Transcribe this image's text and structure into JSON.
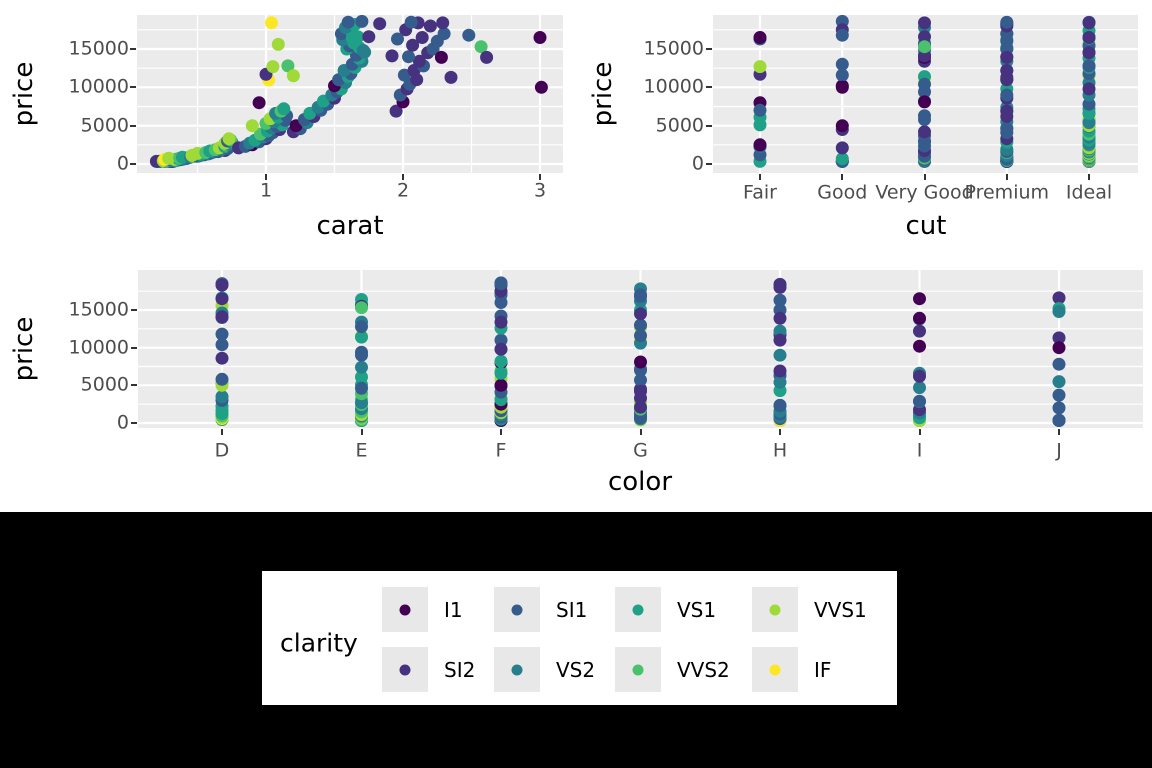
{
  "figure": {
    "background": "#000000",
    "canvas_background": "#ffffff",
    "panel_background": "#ebebeb",
    "grid_color": "#ffffff",
    "tick_color": "#333333",
    "tick_label_color": "#4d4d4d",
    "axis_title_color": "#000000"
  },
  "legend": {
    "title": "clarity",
    "background": "#ffffff",
    "key_background": "#e8e8e8",
    "rows": 2,
    "columns": 4,
    "order_note": "filled row-major: I1 SI1 VS1 VVS1 / SI2 VS2 VVS2 IF"
  },
  "clarity_levels": [
    "I1",
    "SI2",
    "SI1",
    "VS2",
    "VS1",
    "VVS2",
    "VVS1",
    "IF"
  ],
  "clarity_colors": [
    "#440154",
    "#46327E",
    "#365C8D",
    "#277F8E",
    "#1FA187",
    "#4AC16D",
    "#A0DA39",
    "#FDE725"
  ],
  "cut_levels": [
    "Fair",
    "Good",
    "Very Good",
    "Premium",
    "Ideal"
  ],
  "color_levels": [
    "D",
    "E",
    "F",
    "G",
    "H",
    "I",
    "J"
  ],
  "chart_data": [
    {
      "type": "scatter",
      "xlabel": "carat",
      "ylabel": "price",
      "x_field": "carat",
      "color_by": "clarity",
      "x_ticks": [
        1,
        2,
        3
      ],
      "x_minor": [
        0.5,
        1.5,
        2.5
      ],
      "y_ticks": [
        0,
        5000,
        10000,
        15000
      ],
      "y_minor": [
        2500,
        7500,
        12500,
        17500
      ],
      "xlim": [
        0.06,
        3.17
      ],
      "ylim": [
        -1175,
        19435
      ],
      "grid": true,
      "legend_position": "shared-bottom"
    },
    {
      "type": "strip",
      "xlabel": "cut",
      "ylabel": "price",
      "x_field": "cut",
      "color_by": "clarity",
      "categories": [
        "Fair",
        "Good",
        "Very Good",
        "Premium",
        "Ideal"
      ],
      "y_ticks": [
        0,
        5000,
        10000,
        15000
      ],
      "y_minor": [
        2500,
        7500,
        12500,
        17500
      ],
      "ylim": [
        -1175,
        19435
      ],
      "grid": true,
      "legend_position": "shared-bottom"
    },
    {
      "type": "strip",
      "xlabel": "color",
      "ylabel": "price",
      "x_field": "color",
      "color_by": "clarity",
      "categories": [
        "D",
        "E",
        "F",
        "G",
        "H",
        "I",
        "J"
      ],
      "y_ticks": [
        0,
        5000,
        10000,
        15000
      ],
      "y_minor": [
        2500,
        7500,
        12500,
        17500
      ],
      "ylim": [
        -1300,
        20300
      ],
      "grid": true,
      "legend_position": "shared-bottom"
    }
  ],
  "diamonds": {
    "columns": [
      "carat",
      "price",
      "clarity_index",
      "cut_index",
      "color_index"
    ],
    "points": [
      [
        0.23,
        326,
        2,
        4,
        1
      ],
      [
        0.21,
        326,
        2,
        3,
        1
      ],
      [
        0.23,
        327,
        4,
        1,
        1
      ],
      [
        0.29,
        334,
        3,
        3,
        5
      ],
      [
        0.31,
        335,
        1,
        1,
        6
      ],
      [
        0.24,
        336,
        5,
        2,
        5
      ],
      [
        0.24,
        336,
        6,
        2,
        5
      ],
      [
        0.26,
        337,
        2,
        2,
        4
      ],
      [
        0.22,
        337,
        4,
        0,
        2
      ],
      [
        0.23,
        338,
        7,
        4,
        4
      ],
      [
        0.3,
        339,
        2,
        1,
        6
      ],
      [
        0.23,
        340,
        4,
        4,
        2
      ],
      [
        0.22,
        342,
        2,
        3,
        2
      ],
      [
        0.31,
        344,
        1,
        4,
        6
      ],
      [
        0.2,
        345,
        1,
        3,
        2
      ],
      [
        0.32,
        345,
        0,
        3,
        2
      ],
      [
        0.3,
        348,
        2,
        4,
        6
      ],
      [
        0.33,
        366,
        2,
        3,
        6
      ],
      [
        0.25,
        400,
        6,
        4,
        3
      ],
      [
        0.35,
        450,
        4,
        4,
        0
      ],
      [
        0.28,
        470,
        5,
        3,
        1
      ],
      [
        0.32,
        505,
        4,
        2,
        2
      ],
      [
        0.34,
        538,
        5,
        4,
        3
      ],
      [
        0.3,
        552,
        3,
        3,
        3
      ],
      [
        0.38,
        580,
        2,
        2,
        4
      ],
      [
        0.26,
        600,
        7,
        4,
        0
      ],
      [
        0.33,
        625,
        6,
        4,
        1
      ],
      [
        0.4,
        655,
        3,
        4,
        2
      ],
      [
        0.36,
        690,
        4,
        1,
        5
      ],
      [
        0.42,
        720,
        2,
        3,
        3
      ],
      [
        0.29,
        740,
        6,
        4,
        0
      ],
      [
        0.37,
        760,
        5,
        2,
        1
      ],
      [
        0.41,
        800,
        3,
        4,
        4
      ],
      [
        0.44,
        850,
        2,
        3,
        2
      ],
      [
        0.39,
        880,
        4,
        4,
        5
      ],
      [
        0.45,
        930,
        3,
        4,
        1
      ],
      [
        0.47,
        960,
        5,
        4,
        0
      ],
      [
        0.5,
        1010,
        2,
        2,
        3
      ],
      [
        0.52,
        1080,
        3,
        3,
        2
      ],
      [
        0.46,
        1120,
        6,
        4,
        1
      ],
      [
        0.55,
        1200,
        2,
        0,
        4
      ],
      [
        0.53,
        1260,
        4,
        4,
        0
      ],
      [
        0.58,
        1320,
        3,
        4,
        5
      ],
      [
        0.5,
        1380,
        6,
        4,
        2
      ],
      [
        0.6,
        1450,
        2,
        2,
        3
      ],
      [
        0.56,
        1500,
        5,
        3,
        1
      ],
      [
        0.62,
        1560,
        3,
        4,
        4
      ],
      [
        0.65,
        1620,
        2,
        3,
        2
      ],
      [
        0.59,
        1700,
        4,
        4,
        0
      ],
      [
        0.7,
        1760,
        1,
        2,
        5
      ],
      [
        0.63,
        1850,
        5,
        4,
        3
      ],
      [
        0.68,
        1900,
        3,
        3,
        1
      ],
      [
        0.72,
        2000,
        2,
        4,
        6
      ],
      [
        0.66,
        2100,
        6,
        4,
        2
      ],
      [
        0.7,
        2250,
        4,
        0,
        0
      ],
      [
        0.74,
        2350,
        2,
        2,
        4
      ],
      [
        0.71,
        2450,
        5,
        4,
        1
      ],
      [
        0.73,
        2550,
        3,
        4,
        2
      ],
      [
        0.7,
        2700,
        6,
        4,
        3
      ],
      [
        0.75,
        2850,
        4,
        3,
        5
      ],
      [
        0.72,
        3000,
        2,
        2,
        0
      ],
      [
        0.74,
        3150,
        5,
        4,
        1
      ],
      [
        0.73,
        3300,
        6,
        4,
        2
      ],
      [
        0.8,
        2100,
        1,
        1,
        3
      ],
      [
        0.85,
        2300,
        2,
        0,
        4
      ],
      [
        0.9,
        2500,
        0,
        0,
        2
      ],
      [
        0.88,
        2700,
        3,
        4,
        1
      ],
      [
        0.95,
        2900,
        2,
        2,
        5
      ],
      [
        0.92,
        3100,
        4,
        4,
        2
      ],
      [
        1.0,
        3300,
        1,
        3,
        3
      ],
      [
        0.98,
        3500,
        3,
        4,
        0
      ],
      [
        1.02,
        3700,
        2,
        2,
        6
      ],
      [
        0.96,
        3900,
        5,
        4,
        1
      ],
      [
        1.05,
        4100,
        2,
        3,
        2
      ],
      [
        1.01,
        4300,
        4,
        4,
        4
      ],
      [
        1.1,
        4500,
        1,
        1,
        3
      ],
      [
        1.04,
        4700,
        3,
        3,
        5
      ],
      [
        1.08,
        4900,
        2,
        4,
        2
      ],
      [
        1.12,
        5100,
        4,
        0,
        1
      ],
      [
        1.0,
        5300,
        5,
        4,
        0
      ],
      [
        1.06,
        5500,
        3,
        3,
        6
      ],
      [
        1.14,
        5700,
        2,
        4,
        3
      ],
      [
        1.03,
        5900,
        6,
        4,
        2
      ],
      [
        1.09,
        6100,
        4,
        0,
        1
      ],
      [
        1.15,
        6300,
        2,
        2,
        4
      ],
      [
        1.07,
        6600,
        3,
        4,
        5
      ],
      [
        1.11,
        6900,
        5,
        3,
        2
      ],
      [
        1.13,
        7200,
        4,
        4,
        3
      ],
      [
        0.9,
        5000,
        6,
        4,
        0
      ],
      [
        1.04,
        18430,
        7,
        3,
        2
      ],
      [
        1.02,
        10954,
        7,
        2,
        3
      ],
      [
        1.09,
        15600,
        6,
        4,
        0
      ],
      [
        1.16,
        12800,
        5,
        4,
        3
      ],
      [
        1.2,
        11500,
        6,
        4,
        1
      ],
      [
        1.0,
        11700,
        1,
        0,
        4
      ],
      [
        1.05,
        12700,
        6,
        0,
        3
      ],
      [
        0.95,
        8000,
        0,
        0,
        2
      ],
      [
        1.2,
        4200,
        1,
        2,
        3
      ],
      [
        1.25,
        4600,
        2,
        3,
        1
      ],
      [
        1.22,
        5000,
        0,
        1,
        2
      ],
      [
        1.3,
        5400,
        3,
        4,
        4
      ],
      [
        1.28,
        5800,
        2,
        2,
        0
      ],
      [
        1.35,
        6200,
        1,
        3,
        5
      ],
      [
        1.32,
        6600,
        4,
        4,
        2
      ],
      [
        1.4,
        7000,
        2,
        0,
        3
      ],
      [
        1.38,
        7400,
        3,
        3,
        1
      ],
      [
        1.45,
        7800,
        2,
        4,
        6
      ],
      [
        1.42,
        8200,
        4,
        2,
        2
      ],
      [
        1.5,
        8600,
        1,
        3,
        0
      ],
      [
        1.48,
        9000,
        3,
        4,
        4
      ],
      [
        1.52,
        9400,
        2,
        2,
        1
      ],
      [
        1.55,
        9800,
        4,
        3,
        2
      ],
      [
        1.5,
        10200,
        0,
        1,
        5
      ],
      [
        1.58,
        10600,
        3,
        4,
        3
      ],
      [
        1.53,
        11000,
        2,
        3,
        2
      ],
      [
        1.6,
        11400,
        4,
        2,
        1
      ],
      [
        1.62,
        11800,
        2,
        4,
        0
      ],
      [
        1.57,
        12200,
        3,
        3,
        4
      ],
      [
        1.65,
        12600,
        4,
        4,
        2
      ],
      [
        1.63,
        13000,
        2,
        1,
        3
      ],
      [
        1.7,
        13400,
        3,
        3,
        1
      ],
      [
        1.68,
        13800,
        4,
        4,
        5
      ],
      [
        1.66,
        14200,
        2,
        2,
        2
      ],
      [
        1.72,
        14600,
        3,
        4,
        0
      ],
      [
        1.59,
        15000,
        4,
        3,
        3
      ],
      [
        1.61,
        15400,
        2,
        4,
        1
      ],
      [
        1.64,
        15800,
        4,
        2,
        1
      ],
      [
        1.56,
        16200,
        3,
        3,
        3
      ],
      [
        1.67,
        16600,
        4,
        4,
        0
      ],
      [
        1.55,
        17000,
        2,
        3,
        2
      ],
      [
        1.62,
        17400,
        4,
        4,
        2
      ],
      [
        1.58,
        17800,
        3,
        2,
        3
      ],
      [
        1.65,
        18200,
        4,
        3,
        2
      ],
      [
        1.6,
        18500,
        2,
        4,
        0
      ],
      [
        1.63,
        16400,
        4,
        4,
        1
      ],
      [
        1.7,
        18600,
        2,
        1,
        2
      ],
      [
        1.83,
        18300,
        1,
        3,
        0
      ],
      [
        1.75,
        16600,
        1,
        2,
        6
      ],
      [
        1.68,
        15200,
        4,
        3,
        6
      ],
      [
        1.71,
        14800,
        3,
        2,
        6
      ],
      [
        1.95,
        6900,
        1,
        3,
        4
      ],
      [
        2.0,
        8100,
        0,
        2,
        3
      ],
      [
        1.98,
        9000,
        2,
        3,
        1
      ],
      [
        2.03,
        9800,
        1,
        4,
        2
      ],
      [
        2.05,
        10400,
        2,
        2,
        0
      ],
      [
        2.1,
        11000,
        1,
        3,
        4
      ],
      [
        2.01,
        11600,
        2,
        1,
        3
      ],
      [
        2.08,
        12200,
        1,
        3,
        5
      ],
      [
        2.15,
        12800,
        2,
        4,
        1
      ],
      [
        2.12,
        13400,
        1,
        2,
        2
      ],
      [
        2.04,
        14000,
        2,
        3,
        0
      ],
      [
        2.18,
        14500,
        1,
        4,
        3
      ],
      [
        2.22,
        15000,
        2,
        3,
        4
      ],
      [
        2.07,
        15500,
        1,
        2,
        1
      ],
      [
        2.25,
        16000,
        2,
        3,
        2
      ],
      [
        2.14,
        16500,
        1,
        4,
        0
      ],
      [
        2.3,
        17000,
        2,
        3,
        3
      ],
      [
        2.02,
        17500,
        1,
        1,
        2
      ],
      [
        2.2,
        18000,
        1,
        3,
        4
      ],
      [
        2.11,
        18400,
        1,
        4,
        2
      ],
      [
        2.28,
        13900,
        0,
        2,
        5
      ],
      [
        2.35,
        11300,
        1,
        3,
        6
      ],
      [
        1.92,
        14100,
        1,
        2,
        0
      ],
      [
        2.06,
        18500,
        2,
        3,
        2
      ],
      [
        2.29,
        18400,
        1,
        2,
        4
      ],
      [
        1.96,
        16300,
        2,
        0,
        4
      ],
      [
        2.48,
        16800,
        2,
        1,
        3
      ],
      [
        2.57,
        15300,
        5,
        2,
        1
      ],
      [
        2.61,
        13900,
        1,
        3,
        4
      ],
      [
        3.0,
        16500,
        0,
        0,
        5
      ],
      [
        3.01,
        10000,
        0,
        1,
        6
      ]
    ]
  }
}
